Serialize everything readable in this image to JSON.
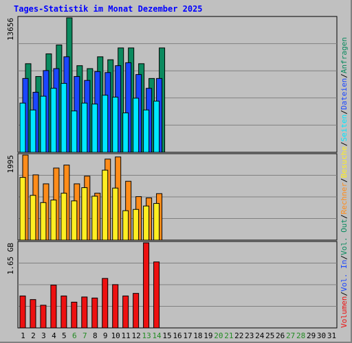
{
  "title": "Tages-Statistik im Monat Dezember 2025",
  "colors": {
    "background": "#c0c0c0",
    "plot_background": "#c0c0c0",
    "title": "#0000ff",
    "weekday_label": "#000000",
    "weekend_label": "#228b22"
  },
  "chart_data": [
    {
      "type": "bar",
      "panel": "top",
      "max_label": "13656",
      "ylim": [
        0,
        13656
      ],
      "categories": [
        "1",
        "2",
        "3",
        "4",
        "5",
        "6",
        "7",
        "8",
        "9",
        "10",
        "11",
        "12",
        "13",
        "14",
        "15",
        "16",
        "17",
        "18",
        "19",
        "20",
        "21",
        "22",
        "23",
        "24",
        "25",
        "26",
        "27",
        "28",
        "29",
        "30",
        "31"
      ],
      "series": [
        {
          "name": "Anfragen",
          "color": "#0b8a5f",
          "values": [
            9000,
            7700,
            10000,
            10900,
            13656,
            8800,
            8500,
            9700,
            9400,
            10600,
            10600,
            9000,
            7500,
            10600,
            null,
            null,
            null,
            null,
            null,
            null,
            null,
            null,
            null,
            null,
            null,
            null,
            null,
            null,
            null,
            null,
            null
          ]
        },
        {
          "name": "Dateien",
          "color": "#1a46ff",
          "values": [
            7500,
            6100,
            8300,
            8500,
            9700,
            7700,
            7300,
            8200,
            8100,
            8800,
            9100,
            7900,
            6500,
            7500,
            null,
            null,
            null,
            null,
            null,
            null,
            null,
            null,
            null,
            null,
            null,
            null,
            null,
            null,
            null,
            null,
            null
          ]
        },
        {
          "name": "Seiten",
          "color": "#00e8ff",
          "values": [
            5000,
            4300,
            5700,
            6500,
            7000,
            4200,
            5000,
            4900,
            5800,
            5600,
            4000,
            5500,
            4300,
            5200,
            null,
            null,
            null,
            null,
            null,
            null,
            null,
            null,
            null,
            null,
            null,
            null,
            null,
            null,
            null,
            null,
            null
          ]
        }
      ],
      "legend_order": [
        "Seiten",
        "Dateien",
        "Anfragen"
      ]
    },
    {
      "type": "bar",
      "panel": "middle",
      "max_label": "1995",
      "ylim": [
        0,
        1995
      ],
      "categories": [
        "1",
        "2",
        "3",
        "4",
        "5",
        "6",
        "7",
        "8",
        "9",
        "10",
        "11",
        "12",
        "13",
        "14",
        "15",
        "16",
        "17",
        "18",
        "19",
        "20",
        "21",
        "22",
        "23",
        "24",
        "25",
        "26",
        "27",
        "28",
        "29",
        "30",
        "31"
      ],
      "series": [
        {
          "name": "Rechner",
          "color": "#ff8c1a",
          "values": [
            1995,
            1530,
            1320,
            1690,
            1760,
            1320,
            1500,
            1100,
            1900,
            1950,
            1380,
            1020,
            990,
            1090,
            null,
            null,
            null,
            null,
            null,
            null,
            null,
            null,
            null,
            null,
            null,
            null,
            null,
            null,
            null,
            null,
            null
          ]
        },
        {
          "name": "Besuche",
          "color": "#ffee22",
          "values": [
            1470,
            1050,
            880,
            940,
            1100,
            920,
            1230,
            1030,
            1640,
            1220,
            690,
            720,
            800,
            860,
            null,
            null,
            null,
            null,
            null,
            null,
            null,
            null,
            null,
            null,
            null,
            null,
            null,
            null,
            null,
            null,
            null
          ]
        }
      ],
      "legend_order": [
        "Besuche",
        "Rechner"
      ]
    },
    {
      "type": "bar",
      "panel": "bottom",
      "max_label": "1.65 GB",
      "ylim": [
        0,
        1.65
      ],
      "categories": [
        "1",
        "2",
        "3",
        "4",
        "5",
        "6",
        "7",
        "8",
        "9",
        "10",
        "11",
        "12",
        "13",
        "14",
        "15",
        "16",
        "17",
        "18",
        "19",
        "20",
        "21",
        "22",
        "23",
        "24",
        "25",
        "26",
        "27",
        "28",
        "29",
        "30",
        "31"
      ],
      "series": [
        {
          "name": "Volumen",
          "color": "#ee1111",
          "values": [
            0.62,
            0.55,
            0.44,
            0.83,
            0.62,
            0.5,
            0.6,
            0.58,
            0.96,
            0.84,
            0.62,
            0.67,
            1.65,
            1.28,
            null,
            null,
            null,
            null,
            null,
            null,
            null,
            null,
            null,
            null,
            null,
            null,
            null,
            null,
            null,
            null,
            null
          ]
        }
      ],
      "legend_order": [
        "Volumen"
      ]
    }
  ],
  "right_legend": [
    {
      "text": "Volumen",
      "color": "#ee1111"
    },
    {
      "text": "/",
      "color": "#000000"
    },
    {
      "text": "Vol. In",
      "color": "#1a46ff"
    },
    {
      "text": "/",
      "color": "#000000"
    },
    {
      "text": "Vol. Out",
      "color": "#0b8a5f"
    },
    {
      "text": "/",
      "color": "#000000"
    },
    {
      "text": "Rechner",
      "color": "#ff8c1a"
    },
    {
      "text": "/",
      "color": "#000000"
    },
    {
      "text": "Besuche",
      "color": "#ffee22"
    },
    {
      "text": "/",
      "color": "#000000"
    },
    {
      "text": "Seiten",
      "color": "#00e8ff"
    },
    {
      "text": "/",
      "color": "#000000"
    },
    {
      "text": "Dateien",
      "color": "#1a46ff"
    },
    {
      "text": "/",
      "color": "#000000"
    },
    {
      "text": "Anfragen",
      "color": "#0b8a5f"
    }
  ],
  "weekend_days": [
    "6",
    "7",
    "13",
    "14",
    "20",
    "21",
    "27",
    "28"
  ]
}
